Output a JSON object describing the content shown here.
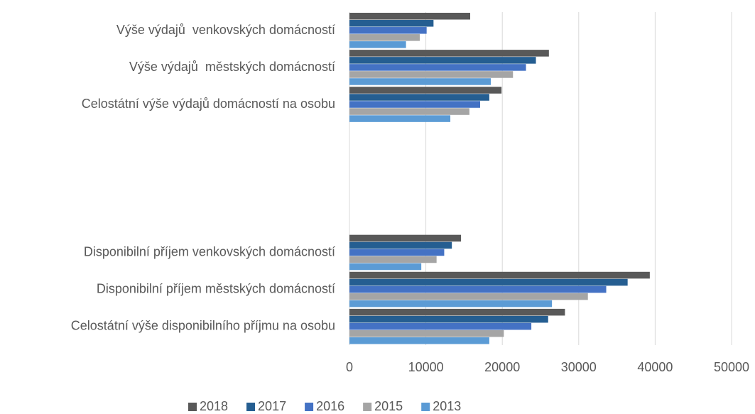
{
  "chart_data": {
    "type": "hbar",
    "categories": [
      "Výše výdajů  venkovských domácností",
      "Výše výdajů  městských domácností",
      "Celostátní výše výdajů domácností na osobu",
      null,
      null,
      null,
      "Disponibilní příjem venkovských domácností",
      "Disponibilní příjem městských domácností",
      "Celostátní výše disponibilního příjmu na osobu"
    ],
    "series": [
      {
        "name": "2018",
        "color": "#595959",
        "values": [
          15800,
          26100,
          19900,
          null,
          null,
          null,
          14600,
          39300,
          28200
        ]
      },
      {
        "name": "2017",
        "color": "#255e91",
        "values": [
          11000,
          24400,
          18300,
          null,
          null,
          null,
          13400,
          36400,
          26000
        ]
      },
      {
        "name": "2016",
        "color": "#4472c4",
        "values": [
          10100,
          23100,
          17100,
          null,
          null,
          null,
          12400,
          33600,
          23800
        ]
      },
      {
        "name": "2015",
        "color": "#a5a5a5",
        "values": [
          9200,
          21400,
          15700,
          null,
          null,
          null,
          11400,
          31200,
          20200
        ]
      },
      {
        "name": "2013",
        "color": "#5b9bd5",
        "values": [
          7400,
          18500,
          13200,
          null,
          null,
          null,
          9400,
          26500,
          18300
        ]
      }
    ],
    "xlim": [
      0,
      50000
    ],
    "xticks": [
      0,
      10000,
      20000,
      30000,
      40000,
      50000
    ],
    "grid": true,
    "legend": "bottom"
  }
}
